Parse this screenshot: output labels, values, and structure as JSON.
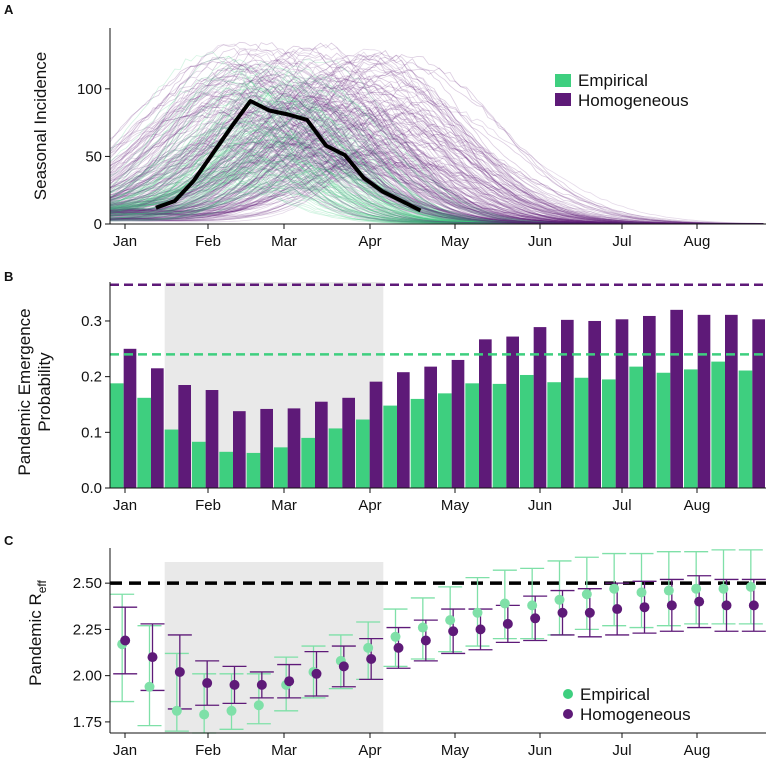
{
  "figure": {
    "panels": [
      "A",
      "B",
      "C"
    ]
  },
  "colors": {
    "empirical": "#3ecf7f",
    "empirical_light": "#7fe0a8",
    "homogeneous": "#5e1a78",
    "homogeneous_light": "#9a6fb0",
    "observed": "#000000",
    "shade": "#e9e9e9"
  },
  "chart_data": [
    {
      "panel": "A",
      "type": "line",
      "ylabel": "Seasonal Incidence",
      "xlabel": "",
      "months": [
        "Jan",
        "Feb",
        "Mar",
        "Apr",
        "May",
        "Jun",
        "Jul",
        "Aug"
      ],
      "month_positions": [
        0,
        31,
        59,
        90,
        120,
        151,
        181,
        212
      ],
      "xlim": [
        -7,
        236
      ],
      "ylim": [
        0,
        145
      ],
      "yticks": [
        0,
        50,
        100
      ],
      "legend": {
        "placement": "top-right",
        "entries": [
          "Empirical",
          "Homogeneous"
        ]
      },
      "observed": {
        "name": "observed",
        "x": [
          10,
          17,
          24,
          31,
          38,
          45,
          52,
          59,
          66,
          73,
          80,
          87,
          94,
          101,
          108
        ],
        "y": [
          12,
          17,
          32,
          52,
          72,
          91,
          84,
          81,
          77,
          58,
          51,
          34,
          24,
          17,
          10
        ]
      },
      "simulation_envelope": {
        "empirical": {
          "peak_day_range": [
            30,
            75
          ],
          "peak_height_range": [
            25,
            120
          ],
          "width_range": [
            18,
            28
          ]
        },
        "homogeneous": {
          "peak_day_range": [
            30,
            110
          ],
          "peak_height_range": [
            40,
            130
          ],
          "width_range": [
            20,
            38
          ]
        }
      }
    },
    {
      "panel": "B",
      "type": "bar",
      "ylabel_lines": [
        "Pandemic Emergence",
        "Probability"
      ],
      "months": [
        "Jan",
        "Feb",
        "Mar",
        "Apr",
        "May",
        "Jun",
        "Jul",
        "Aug"
      ],
      "ylim": [
        0,
        0.37
      ],
      "yticks": [
        "0.0",
        "0.1",
        "0.2",
        "0.3"
      ],
      "shaded_bin_range": [
        2,
        10
      ],
      "reference_lines": {
        "empirical": 0.24,
        "homogeneous": 0.365
      },
      "series": [
        {
          "name": "Empirical",
          "values": [
            0.188,
            0.162,
            0.105,
            0.083,
            0.065,
            0.063,
            0.073,
            0.09,
            0.107,
            0.123,
            0.148,
            0.16,
            0.17,
            0.188,
            0.187,
            0.203,
            0.19,
            0.198,
            0.195,
            0.218,
            0.207,
            0.213,
            0.227,
            0.211
          ]
        },
        {
          "name": "Homogeneous",
          "values": [
            0.25,
            0.215,
            0.185,
            0.176,
            0.138,
            0.142,
            0.143,
            0.155,
            0.162,
            0.191,
            0.208,
            0.218,
            0.23,
            0.267,
            0.272,
            0.289,
            0.302,
            0.3,
            0.303,
            0.309,
            0.32,
            0.311,
            0.311,
            0.303
          ]
        }
      ]
    },
    {
      "panel": "C",
      "type": "scatter",
      "ylabel": "Pandemic R",
      "ylabel_subscript": "eff",
      "months": [
        "Jan",
        "Feb",
        "Mar",
        "Apr",
        "May",
        "Jun",
        "Jul",
        "Aug"
      ],
      "ylim": [
        1.69,
        2.69
      ],
      "yticks": [
        "1.75",
        "2.00",
        "2.25",
        "2.50"
      ],
      "shaded_bin_range": [
        2,
        10
      ],
      "reference_line": 2.5,
      "legend": {
        "placement": "bottom-right",
        "entries": [
          "Empirical",
          "Homogeneous"
        ]
      },
      "series": [
        {
          "name": "Empirical",
          "mean": [
            2.17,
            1.94,
            1.81,
            1.79,
            1.81,
            1.84,
            1.95,
            2.02,
            2.08,
            2.15,
            2.21,
            2.26,
            2.3,
            2.34,
            2.39,
            2.38,
            2.41,
            2.44,
            2.47,
            2.45,
            2.46,
            2.47,
            2.47,
            2.48
          ],
          "lower": [
            1.86,
            1.73,
            1.7,
            1.69,
            1.71,
            1.74,
            1.81,
            1.88,
            1.93,
            1.98,
            2.05,
            2.09,
            2.13,
            2.16,
            2.2,
            2.2,
            2.22,
            2.25,
            2.27,
            2.26,
            2.27,
            2.28,
            2.28,
            2.28
          ],
          "upper": [
            2.44,
            2.27,
            2.12,
            2.01,
            2.01,
            2.01,
            2.1,
            2.16,
            2.22,
            2.29,
            2.36,
            2.42,
            2.48,
            2.53,
            2.57,
            2.58,
            2.62,
            2.64,
            2.66,
            2.66,
            2.67,
            2.67,
            2.68,
            2.68
          ]
        },
        {
          "name": "Homogeneous",
          "mean": [
            2.19,
            2.1,
            2.02,
            1.96,
            1.95,
            1.95,
            1.97,
            2.01,
            2.05,
            2.09,
            2.15,
            2.19,
            2.24,
            2.25,
            2.28,
            2.31,
            2.34,
            2.34,
            2.36,
            2.37,
            2.38,
            2.4,
            2.38,
            2.38
          ],
          "lower": [
            2.01,
            1.92,
            1.82,
            1.84,
            1.85,
            1.88,
            1.88,
            1.89,
            1.94,
            1.98,
            2.04,
            2.08,
            2.12,
            2.14,
            2.18,
            2.19,
            2.22,
            2.21,
            2.22,
            2.23,
            2.24,
            2.26,
            2.24,
            2.24
          ]
        }
      ]
    }
  ]
}
